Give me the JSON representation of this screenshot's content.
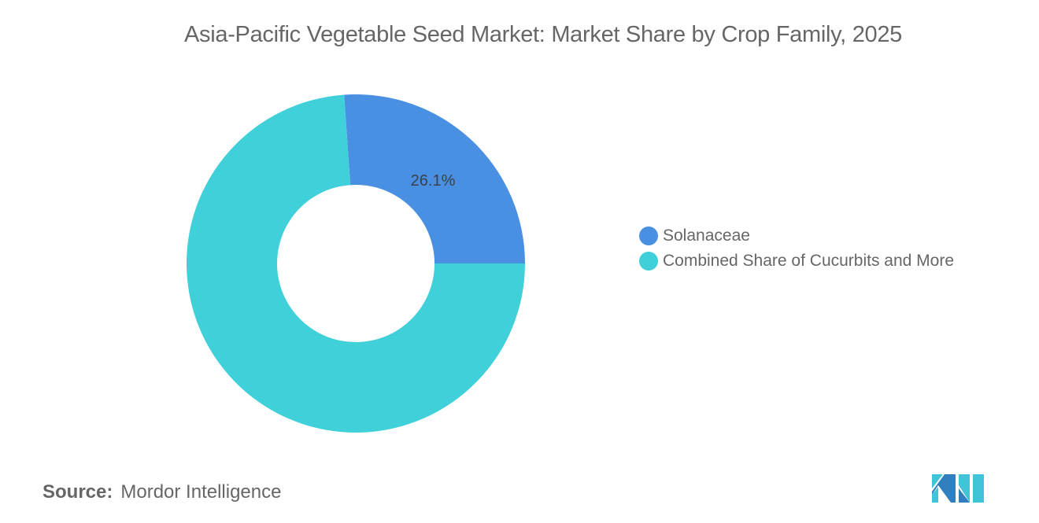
{
  "title": "Asia-Pacific Vegetable Seed Market: Market Share by Crop Family, 2025",
  "source": {
    "label": "Source:",
    "value": "Mordor Intelligence"
  },
  "legend": [
    {
      "label": "Solanaceae",
      "color": "#4a90e2"
    },
    {
      "label": "Combined Share of Cucurbits and More",
      "color": "#40d0da"
    }
  ],
  "chart_data": {
    "type": "pie",
    "subtype": "donut",
    "title": "Asia-Pacific Vegetable Seed Market: Market Share by Crop Family, 2025",
    "categories": [
      "Solanaceae",
      "Combined Share of Cucurbits and More"
    ],
    "values": [
      26.1,
      73.9
    ],
    "unit": "%",
    "data_labels": [
      "26.1%",
      ""
    ],
    "colors": [
      "#4a90e2",
      "#40d0da"
    ],
    "legend_position": "right"
  },
  "logo": {
    "name": "Mordor Intelligence logo"
  }
}
